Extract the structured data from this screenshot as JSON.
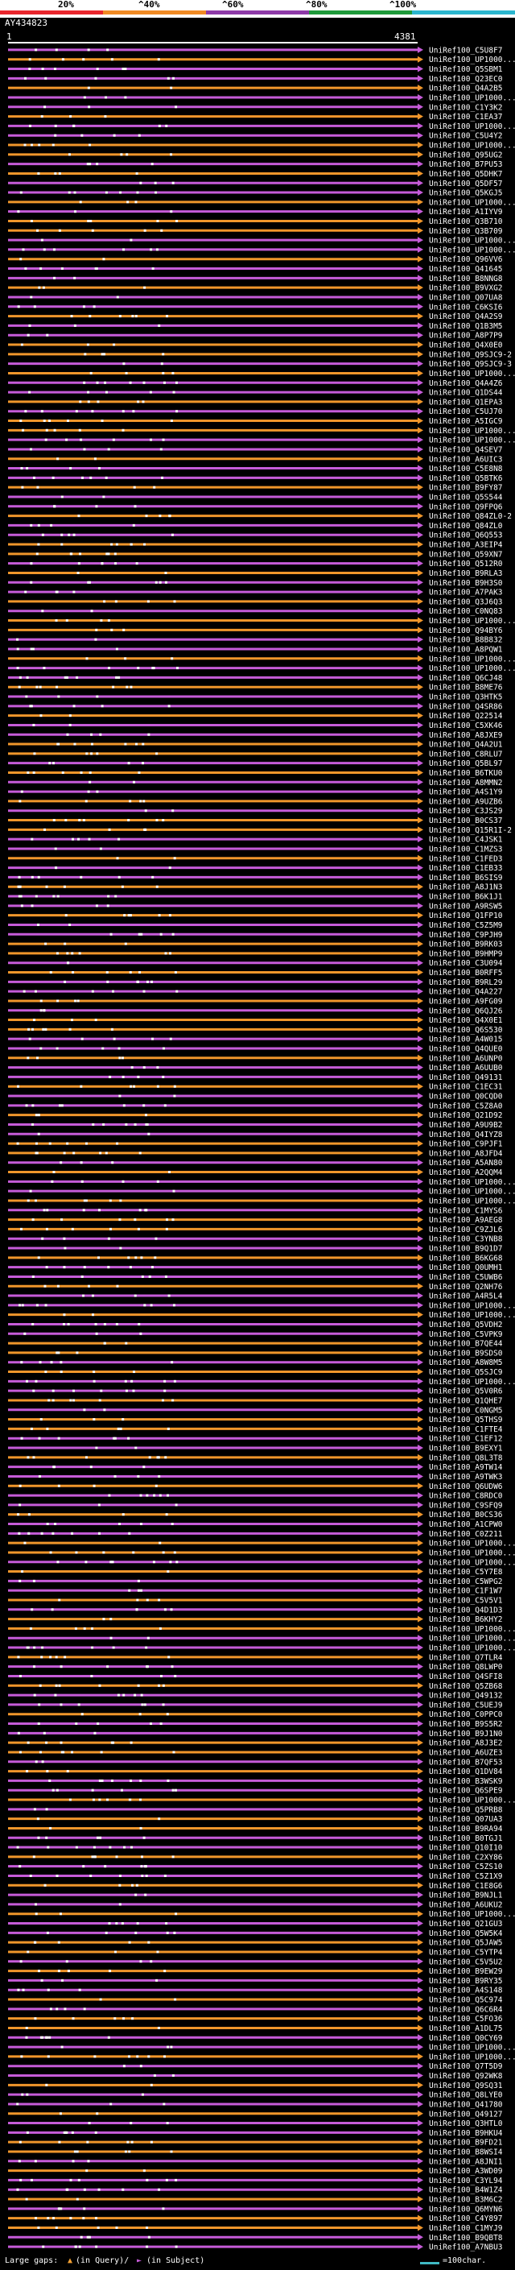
{
  "legend": {
    "labels": [
      "20%",
      "^40%",
      "^60%",
      "^80%",
      "^100%"
    ],
    "colors": [
      "#e8262d",
      "#f08a24",
      "#8e3aa8",
      "#1f9a3a",
      "#2bb6cf"
    ]
  },
  "query": {
    "name": "AY434823",
    "start": "1",
    "end": "4381"
  },
  "footer": {
    "large_gaps_label": "Large gaps:",
    "query_glyph": "▲",
    "query_text": "(in Query)/",
    "subject_glyph": "►",
    "subject_text": "(in Subject)",
    "scale_text": "=100char."
  },
  "chart_data": {
    "type": "alignment",
    "query_length": 4381,
    "colors": {
      "primary": "#c65bd8",
      "secondary": "#f0962b",
      "dots": "#ffffff"
    },
    "hits": [
      "UniRef100_C5U8F7",
      "UniRef100_UP1000...",
      "UniRef100_Q5SBM1",
      "UniRef100_Q23EC0",
      "UniRef100_Q4A2B5",
      "UniRef100_UP1000...",
      "UniRef100_C1Y3K2",
      "UniRef100_C1EA37",
      "UniRef100_UP1000...",
      "UniRef100_C5U4Y2",
      "UniRef100_UP1000...",
      "UniRef100_Q95UG2",
      "UniRef100_B7PU53",
      "UniRef100_Q5DHK7",
      "UniRef100_Q5DF57",
      "UniRef100_Q5KGJ5",
      "UniRef100_UP1000...",
      "UniRef100_A1IYV9",
      "UniRef100_Q3B710",
      "UniRef100_Q3B709",
      "UniRef100_UP1000...",
      "UniRef100_UP1000...",
      "UniRef100_Q96VV6",
      "UniRef100_Q41645",
      "UniRef100_B8NNG8",
      "UniRef100_B9VXG2",
      "UniRef100_Q07UA8",
      "UniRef100_C6KSI6",
      "UniRef100_Q4A2S9",
      "UniRef100_Q1B3M5",
      "UniRef100_A8P7P9",
      "UniRef100_Q4X0E0",
      "UniRef100_Q9SJC9-2",
      "UniRef100_Q9SJC9-3",
      "UniRef100_UP1000...",
      "UniRef100_Q4A4Z6",
      "UniRef100_Q1DS44",
      "UniRef100_Q1EPA3",
      "UniRef100_C5UJ70",
      "UniRef100_A5IGC9",
      "UniRef100_UP1000...",
      "UniRef100_UP1000...",
      "UniRef100_Q4SEV7",
      "UniRef100_A6UIC3",
      "UniRef100_C5E8N8",
      "UniRef100_Q5BTK6",
      "UniRef100_B9FY87",
      "UniRef100_Q5S544",
      "UniRef100_Q9FPQ6",
      "UniRef100_Q84ZL0-2",
      "UniRef100_Q84ZL0",
      "UniRef100_Q6Q553",
      "UniRef100_A3EIP4",
      "UniRef100_Q59XN7",
      "UniRef100_Q512R0",
      "UniRef100_B9RLA3",
      "UniRef100_B9H3S0",
      "UniRef100_A7PAK3",
      "UniRef100_Q3J6Q3",
      "UniRef100_C0NQ83",
      "UniRef100_UP1000...",
      "UniRef100_Q94BY6",
      "UniRef100_B8B832",
      "UniRef100_A8PQW1",
      "UniRef100_UP1000...",
      "UniRef100_UP1000...",
      "UniRef100_Q6CJ48",
      "UniRef100_B8ME76",
      "UniRef100_Q3HTK5",
      "UniRef100_Q4SR86",
      "UniRef100_Q22514",
      "UniRef100_C5XK46",
      "UniRef100_A8JXE9",
      "UniRef100_Q4A2U1",
      "UniRef100_C8RLU7",
      "UniRef100_Q5BL97",
      "UniRef100_B6TKU0",
      "UniRef100_A8MMN2",
      "UniRef100_A4S1Y9",
      "UniRef100_A9UZB6",
      "UniRef100_C3JS29",
      "UniRef100_B0CS37",
      "UniRef100_Q15R1I-2",
      "UniRef100_C4JSK1",
      "UniRef100_C1MZS3",
      "UniRef100_C1FED3",
      "UniRef100_C1EB33",
      "UniRef100_B6SIS9",
      "UniRef100_A8J1N3",
      "UniRef100_B6K1J1",
      "UniRef100_A9RSW5",
      "UniRef100_Q1FP10",
      "UniRef100_C5Z5M9",
      "UniRef100_C9PJH9",
      "UniRef100_B9RK03",
      "UniRef100_B9HMP9",
      "UniRef100_C3U094",
      "UniRef100_B0RFF5",
      "UniRef100_B9RL29",
      "UniRef100_Q4A227",
      "UniRef100_A9FG09",
      "UniRef100_Q6QJ26",
      "UniRef100_Q4X0E1",
      "UniRef100_Q6S530",
      "UniRef100_A4W015",
      "UniRef100_Q4QUE0",
      "UniRef100_A6UNP0",
      "UniRef100_A6UUB0",
      "UniRef100_Q49131",
      "UniRef100_C1EC31",
      "UniRef100_Q0CQD0",
      "UniRef100_C5Z8A0",
      "UniRef100_Q21D92",
      "UniRef100_A9U9B2",
      "UniRef100_Q4IYZ8",
      "UniRef100_C9PJF1",
      "UniRef100_A8JFD4",
      "UniRef100_A5AN80",
      "UniRef100_A2QQM4",
      "UniRef100_UP1000...",
      "UniRef100_UP1000...",
      "UniRef100_UP1000...",
      "UniRef100_C1MYS6",
      "UniRef100_A9AEG8",
      "UniRef100_C9ZJL6",
      "UniRef100_C3YNB8",
      "UniRef100_B9Q1D7",
      "UniRef100_B6KG68",
      "UniRef100_Q0UMH1",
      "UniRef100_C5UWB6",
      "UniRef100_Q2NH76",
      "UniRef100_A4R5L4",
      "UniRef100_UP1000...",
      "UniRef100_UP1000...",
      "UniRef100_Q5VDH2",
      "UniRef100_C5VPK9",
      "UniRef100_B7QE44",
      "UniRef100_B9SDS0",
      "UniRef100_A8W8M5",
      "UniRef100_Q5SJC9",
      "UniRef100_UP1000...",
      "UniRef100_Q5V0R6",
      "UniRef100_Q1QHE7",
      "UniRef100_C0NGM5",
      "UniRef100_Q5THS9",
      "UniRef100_C1FTE4",
      "UniRef100_C1EF12",
      "UniRef100_B9EXY1",
      "UniRef100_Q8L3T8",
      "UniRef100_A9TW14",
      "UniRef100_A9TWK3",
      "UniRef100_Q6UDW6",
      "UniRef100_C8RDC0",
      "UniRef100_C9SFQ9",
      "UniRef100_B0CS36",
      "UniRef100_A1CPW0",
      "UniRef100_C0Z211",
      "UniRef100_UP1000...",
      "UniRef100_UP1000...",
      "UniRef100_UP1000...",
      "UniRef100_C5Y7E8",
      "UniRef100_C5WPG2",
      "UniRef100_C1F1W7",
      "UniRef100_C5V5V1",
      "UniRef100_Q4D1D3",
      "UniRef100_B6KHY2",
      "UniRef100_UP1000...",
      "UniRef100_UP1000...",
      "UniRef100_UP1000...",
      "UniRef100_Q7TLR4",
      "UniRef100_Q8LWP0",
      "UniRef100_Q4SFI8",
      "UniRef100_Q5ZB68",
      "UniRef100_Q49132",
      "UniRef100_C5UEJ9",
      "UniRef100_C0PPC0",
      "UniRef100_B9S5R2",
      "UniRef100_B9J1N0",
      "UniRef100_A8J3E2",
      "UniRef100_A6UZE3",
      "UniRef100_B7QF53",
      "UniRef100_Q1DV84",
      "UniRef100_B3WSK9",
      "UniRef100_Q6SPE9",
      "UniRef100_UP1000...",
      "UniRef100_Q5PRB8",
      "UniRef100_Q07UA3",
      "UniRef100_B9RA94",
      "UniRef100_B0TGJ1",
      "UniRef100_Q10I10",
      "UniRef100_C2XY86",
      "UniRef100_C5ZS10",
      "UniRef100_C5Z1X9",
      "UniRef100_C1E8G6",
      "UniRef100_B9NJL1",
      "UniRef100_A6UKU2",
      "UniRef100_UP1000...",
      "UniRef100_Q21GU3",
      "UniRef100_Q5W5K4",
      "UniRef100_Q5JAW5",
      "UniRef100_C5YTP4",
      "UniRef100_C5V5U2",
      "UniRef100_B9EW29",
      "UniRef100_B9RY35",
      "UniRef100_A4S148",
      "UniRef100_Q5C974",
      "UniRef100_Q6C6R4",
      "UniRef100_C5FO36",
      "UniRef100_A1DL75",
      "UniRef100_Q0CY69",
      "UniRef100_UP1000...",
      "UniRef100_UP1000...",
      "UniRef100_Q7T5D9",
      "UniRef100_Q92WK8",
      "UniRef100_Q9SQ31",
      "UniRef100_Q8LYE0",
      "UniRef100_Q41780",
      "UniRef100_Q49127",
      "UniRef100_Q3HTL0",
      "UniRef100_B9HKU4",
      "UniRef100_B9FD21",
      "UniRef100_B8WSI4",
      "UniRef100_A8JNI1",
      "UniRef100_A3WD09",
      "UniRef100_C3YL94",
      "UniRef100_B4W1Z4",
      "UniRef100_B3M6C2",
      "UniRef100_Q6MYN6",
      "UniRef100_C4Y897",
      "UniRef100_C1MYJ9",
      "UniRef100_B9QBT8",
      "UniRef100_A7NBU3"
    ]
  }
}
